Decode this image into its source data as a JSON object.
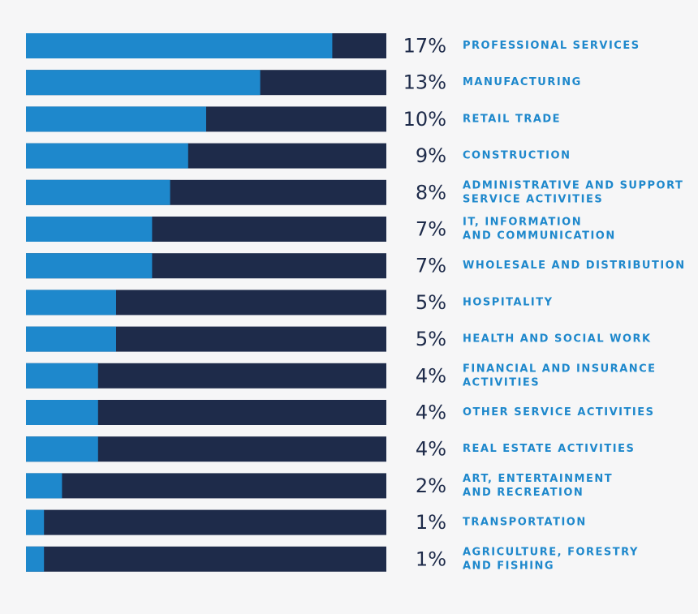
{
  "chart_data": {
    "type": "bar",
    "orientation": "horizontal",
    "title": "",
    "xlabel": "",
    "ylabel": "",
    "xlim": [
      0,
      20
    ],
    "grid": false,
    "colors": {
      "fill": "#1e88cc",
      "track": "#1e2b4a",
      "value_text": "#1e2b4a",
      "category_text": "#1e88cc"
    },
    "categories": [
      [
        "PROFESSIONAL SERVICES"
      ],
      [
        "MANUFACTURING"
      ],
      [
        "RETAIL TRADE"
      ],
      [
        "CONSTRUCTION"
      ],
      [
        "ADMINISTRATIVE AND SUPPORT",
        "SERVICE ACTIVITIES"
      ],
      [
        "IT, INFORMATION",
        "AND COMMUNICATION"
      ],
      [
        "WHOLESALE AND DISTRIBUTION"
      ],
      [
        "HOSPITALITY"
      ],
      [
        "HEALTH AND SOCIAL WORK"
      ],
      [
        "FINANCIAL AND INSURANCE",
        "ACTIVITIES"
      ],
      [
        "OTHER SERVICE ACTIVITIES"
      ],
      [
        "REAL ESTATE ACTIVITIES"
      ],
      [
        "ART, ENTERTAINMENT",
        "AND RECREATION"
      ],
      [
        "TRANSPORTATION"
      ],
      [
        "AGRICULTURE, FORESTRY",
        "AND FISHING"
      ]
    ],
    "values": [
      17,
      13,
      10,
      9,
      8,
      7,
      7,
      5,
      5,
      4,
      4,
      4,
      2,
      1,
      1
    ],
    "labels": [
      "17%",
      "13%",
      "10%",
      "9%",
      "8%",
      "7%",
      "7%",
      "5%",
      "5%",
      "4%",
      "4%",
      "4%",
      "2%",
      "1%",
      "1%"
    ]
  }
}
